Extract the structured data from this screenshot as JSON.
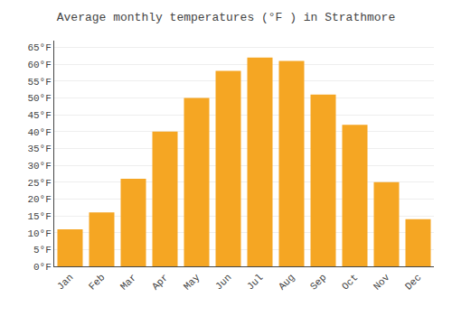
{
  "chart_data": {
    "type": "bar",
    "title": "Average monthly temperatures (°F ) in Strathmore",
    "categories": [
      "Jan",
      "Feb",
      "Mar",
      "Apr",
      "May",
      "Jun",
      "Jul",
      "Aug",
      "Sep",
      "Oct",
      "Nov",
      "Dec"
    ],
    "values": [
      11,
      16,
      26,
      40,
      50,
      58,
      62,
      61,
      51,
      42,
      25,
      14
    ],
    "color": "#F5A623",
    "ylim": [
      0,
      67
    ],
    "yticks": [
      {
        "value": 0,
        "label": "0°F"
      },
      {
        "value": 5,
        "label": "5°F"
      },
      {
        "value": 10,
        "label": "10°F"
      },
      {
        "value": 15,
        "label": "15°F"
      },
      {
        "value": 20,
        "label": "20°F"
      },
      {
        "value": 25,
        "label": "25°F"
      },
      {
        "value": 30,
        "label": "30°F"
      },
      {
        "value": 35,
        "label": "35°F"
      },
      {
        "value": 40,
        "label": "40°F"
      },
      {
        "value": 45,
        "label": "45°F"
      },
      {
        "value": 50,
        "label": "50°F"
      },
      {
        "value": 55,
        "label": "55°F"
      },
      {
        "value": 60,
        "label": "60°F"
      },
      {
        "value": 65,
        "label": "65°F"
      }
    ],
    "grid": true
  }
}
